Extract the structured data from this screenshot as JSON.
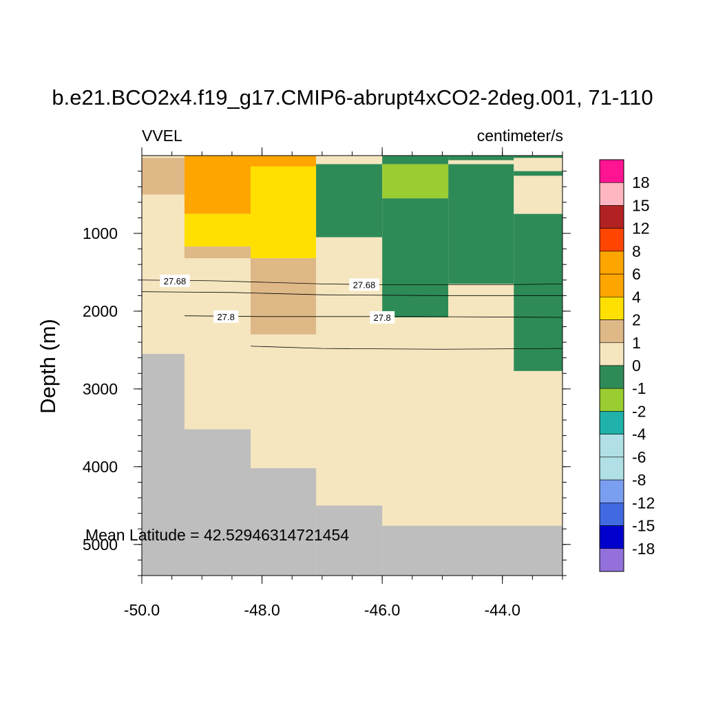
{
  "title": "b.e21.BCO2x4.f19_g17.CMIP6-abrupt4xCO2-2deg.001, 71-110",
  "left_subtitle": "VVEL",
  "right_subtitle": "centimeter/s",
  "annotation": "Mean Latitude = 42.52946314721454",
  "chart_data": {
    "type": "heatmap",
    "title": "b.e21.BCO2x4.f19_g17.CMIP6-abrupt4xCO2-2deg.001, 71-110",
    "xlabel": "",
    "ylabel": "Depth (m)",
    "xlim": [
      -50.0,
      -43.0
    ],
    "ylim": [
      5400,
      0
    ],
    "x_ticks": [
      -50.0,
      -48.0,
      -46.0,
      -44.0
    ],
    "x_tick_labels": [
      "-50.0",
      "-48.0",
      "-46.0",
      "-44.0"
    ],
    "y_ticks": [
      1000,
      2000,
      3000,
      4000,
      5000
    ],
    "y_tick_labels": [
      "1000",
      "2000",
      "3000",
      "4000",
      "5000"
    ],
    "colorbar": {
      "labels": [
        "18",
        "15",
        "12",
        "8",
        "6",
        "4",
        "2",
        "1",
        "0",
        "-1",
        "-2",
        "-4",
        "-6",
        "-8",
        "-12",
        "-15",
        "-18"
      ],
      "colors": [
        "#ff1493",
        "#ffb6c1",
        "#b22222",
        "#ff4500",
        "#ffa500",
        "#ffa500",
        "#ffe000",
        "#deb887",
        "#f5e6c0",
        "#2e8b57",
        "#9acd32",
        "#20b2aa",
        "#b0e0e6",
        "#b0e0e6",
        "#7b9ff0",
        "#4169e1",
        "#0000cd",
        "#9370db"
      ]
    },
    "land_color": "#bebebe",
    "columns_lon_edges": [
      -50.0,
      -49.29,
      -48.19,
      -47.1,
      -46.0,
      -44.9,
      -43.81,
      -43.0
    ],
    "cells": [
      {
        "x": [
          -50.0,
          -49.29
        ],
        "y": [
          0,
          30
        ],
        "v": 0
      },
      {
        "x": [
          -50.0,
          -49.29
        ],
        "y": [
          30,
          500
        ],
        "v": 1
      },
      {
        "x": [
          -50.0,
          -49.29
        ],
        "y": [
          500,
          2550
        ],
        "v": 0
      },
      {
        "x": [
          -49.29,
          -48.19
        ],
        "y": [
          0,
          750
        ],
        "v": 5
      },
      {
        "x": [
          -49.29,
          -48.19
        ],
        "y": [
          750,
          1170
        ],
        "v": 3
      },
      {
        "x": [
          -49.29,
          -48.19
        ],
        "y": [
          1170,
          1320
        ],
        "v": 1.5
      },
      {
        "x": [
          -49.29,
          -48.19
        ],
        "y": [
          1320,
          3520
        ],
        "v": 0
      },
      {
        "x": [
          -48.19,
          -47.1
        ],
        "y": [
          0,
          140
        ],
        "v": 5
      },
      {
        "x": [
          -48.19,
          -47.1
        ],
        "y": [
          140,
          1320
        ],
        "v": 3
      },
      {
        "x": [
          -48.19,
          -47.1
        ],
        "y": [
          1320,
          2300
        ],
        "v": 1.5
      },
      {
        "x": [
          -48.19,
          -47.1
        ],
        "y": [
          2300,
          4020
        ],
        "v": 0
      },
      {
        "x": [
          -47.1,
          -46.0
        ],
        "y": [
          0,
          110
        ],
        "v": 0
      },
      {
        "x": [
          -47.1,
          -46.0
        ],
        "y": [
          110,
          1050
        ],
        "v": -0.5
      },
      {
        "x": [
          -47.1,
          -46.0
        ],
        "y": [
          1050,
          4500
        ],
        "v": 0
      },
      {
        "x": [
          -46.0,
          -44.9
        ],
        "y": [
          0,
          110
        ],
        "v": -0.5
      },
      {
        "x": [
          -46.0,
          -44.9
        ],
        "y": [
          110,
          550
        ],
        "v": -1.5
      },
      {
        "x": [
          -46.0,
          -44.9
        ],
        "y": [
          550,
          2080
        ],
        "v": -0.5
      },
      {
        "x": [
          -46.0,
          -44.9
        ],
        "y": [
          2080,
          4760
        ],
        "v": 0
      },
      {
        "x": [
          -44.9,
          -43.81
        ],
        "y": [
          0,
          60
        ],
        "v": -0.5
      },
      {
        "x": [
          -44.9,
          -43.81
        ],
        "y": [
          60,
          110
        ],
        "v": 0
      },
      {
        "x": [
          -44.9,
          -43.81
        ],
        "y": [
          110,
          1650
        ],
        "v": -0.5
      },
      {
        "x": [
          -44.9,
          -43.81
        ],
        "y": [
          1650,
          4760
        ],
        "v": 0
      },
      {
        "x": [
          -43.81,
          -43.0
        ],
        "y": [
          0,
          30
        ],
        "v": -0.5
      },
      {
        "x": [
          -43.81,
          -43.0
        ],
        "y": [
          30,
          200
        ],
        "v": 0
      },
      {
        "x": [
          -43.81,
          -43.0
        ],
        "y": [
          200,
          260
        ],
        "v": -0.5
      },
      {
        "x": [
          -43.81,
          -43.0
        ],
        "y": [
          260,
          750
        ],
        "v": 0
      },
      {
        "x": [
          -43.81,
          -43.0
        ],
        "y": [
          750,
          2770
        ],
        "v": -0.5
      },
      {
        "x": [
          -43.81,
          -43.0
        ],
        "y": [
          2770,
          4760
        ],
        "v": 0
      }
    ],
    "land": [
      {
        "x": [
          -50.0,
          -49.29
        ],
        "y": [
          2550,
          5400
        ]
      },
      {
        "x": [
          -49.29,
          -48.19
        ],
        "y": [
          3520,
          5400
        ]
      },
      {
        "x": [
          -48.19,
          -47.1
        ],
        "y": [
          4020,
          5400
        ]
      },
      {
        "x": [
          -47.1,
          -46.0
        ],
        "y": [
          4500,
          5400
        ]
      },
      {
        "x": [
          -46.0,
          -43.0
        ],
        "y": [
          4760,
          5400
        ]
      }
    ],
    "contours": [
      {
        "value": "27.68",
        "points": [
          [
            -50.0,
            1600
          ],
          [
            -48.8,
            1610
          ],
          [
            -47.0,
            1650
          ],
          [
            -46.0,
            1660
          ],
          [
            -44.0,
            1660
          ],
          [
            -43.0,
            1650
          ]
        ],
        "labels": [
          {
            "text": "27.68",
            "x": -49.45,
            "y": 1610
          },
          {
            "text": "27.68",
            "x": -46.3,
            "y": 1660
          }
        ]
      },
      {
        "value": "",
        "points": [
          [
            -50.0,
            1750
          ],
          [
            -48.5,
            1760
          ],
          [
            -47.0,
            1790
          ],
          [
            -45.0,
            1800
          ],
          [
            -43.0,
            1800
          ]
        ],
        "labels": []
      },
      {
        "value": "27.8",
        "points": [
          [
            -49.29,
            2060
          ],
          [
            -48.0,
            2070
          ],
          [
            -47.0,
            2070
          ],
          [
            -45.5,
            2070
          ],
          [
            -43.0,
            2080
          ]
        ],
        "labels": [
          {
            "text": "27.8",
            "x": -48.6,
            "y": 2070
          },
          {
            "text": "27.8",
            "x": -46.0,
            "y": 2080
          }
        ]
      },
      {
        "value": "",
        "points": [
          [
            -48.19,
            2450
          ],
          [
            -47.0,
            2480
          ],
          [
            -45.0,
            2490
          ],
          [
            -43.0,
            2480
          ]
        ],
        "labels": []
      }
    ]
  }
}
